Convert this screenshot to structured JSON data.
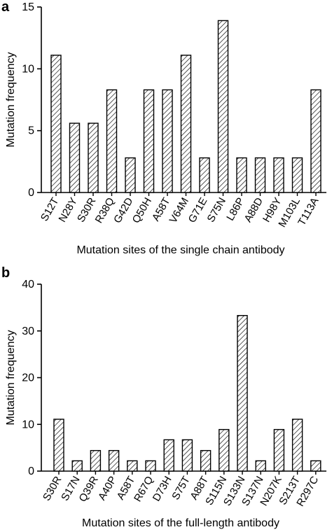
{
  "chart_data": [
    {
      "type": "bar",
      "panel": "a",
      "categories": [
        "S12T",
        "N28Y",
        "S30R",
        "R38Q",
        "G42D",
        "Q50H",
        "A58T",
        "V64M",
        "G71E",
        "S75N",
        "L86P",
        "A88D",
        "H98Y",
        "M103L",
        "T113A"
      ],
      "values": [
        11.1,
        5.6,
        5.6,
        8.3,
        2.8,
        8.3,
        8.3,
        11.1,
        2.8,
        13.9,
        2.8,
        2.8,
        2.8,
        2.8,
        8.3
      ],
      "xlabel": "Mutation sites of the single chain antibody",
      "ylabel": "Mutation frequency",
      "ylim": [
        0,
        15
      ],
      "yticks": [
        0,
        5,
        10,
        15
      ],
      "bar_pattern": "diagonal-hatch",
      "grid": false
    },
    {
      "type": "bar",
      "panel": "b",
      "categories": [
        "S30R",
        "S17N",
        "Q39R",
        "A40P",
        "A58T",
        "R67Q",
        "D73H",
        "S75T",
        "A88T",
        "S115N",
        "S133N",
        "S137N",
        "N207K",
        "S213T",
        "R297C"
      ],
      "values": [
        11.1,
        2.2,
        4.4,
        4.4,
        2.2,
        2.2,
        6.7,
        6.7,
        4.4,
        8.9,
        33.3,
        2.2,
        8.9,
        11.1,
        2.2
      ],
      "xlabel": "Mutation sites of the full-length antibody",
      "ylabel": "Mutation frequency",
      "ylim": [
        0,
        40
      ],
      "yticks": [
        0,
        10,
        20,
        30,
        40
      ],
      "bar_pattern": "diagonal-hatch",
      "grid": false
    }
  ]
}
